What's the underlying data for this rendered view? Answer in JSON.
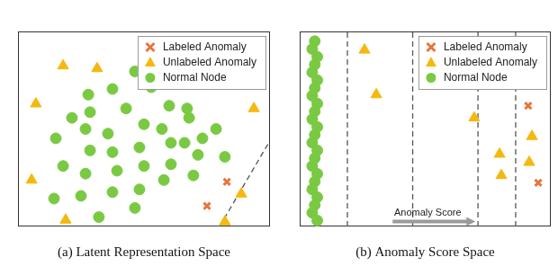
{
  "chart_data": [
    {
      "type": "scatter",
      "xlabel": "(a) Latent Representation Space",
      "xlim": [
        0,
        100
      ],
      "ylim": [
        0,
        100
      ],
      "xticks": [],
      "yticks": [],
      "tick_labels": false,
      "grid": false,
      "legend": "upper right",
      "series": [
        {
          "name": "Labeled Anomaly",
          "color": "#e8743b",
          "marker": "x",
          "x": [
            82.9,
            75.0
          ],
          "values": [
            22.9,
            10.5
          ]
        },
        {
          "name": "Unlabeled Anomaly",
          "color": "#f5b80f",
          "marker": "triangle",
          "x": [
            17.9,
            31.4,
            7.1,
            93.6,
            5.4,
            18.9,
            88.6,
            82.1
          ],
          "values": [
            82.4,
            81.0,
            62.9,
            60.5,
            23.8,
            3.3,
            16.7,
            2.4
          ]
        },
        {
          "name": "Normal Node",
          "color": "#7ac943",
          "marker": "circle",
          "x": [
            46.4,
            37.5,
            52.9,
            27.9,
            21.4,
            28.6,
            42.9,
            60.0,
            67.1,
            15.0,
            26.8,
            35.7,
            50.0,
            57.1,
            67.9,
            78.6,
            28.6,
            37.5,
            48.2,
            60.7,
            66.1,
            73.2,
            17.9,
            26.8,
            39.3,
            50.0,
            60.7,
            71.4,
            82.1,
            14.3,
            25.0,
            37.5,
            48.2,
            57.9,
            69.6,
            32.1,
            46.4
          ],
          "values": [
            79.5,
            70.5,
            71.4,
            67.6,
            55.7,
            58.6,
            60.5,
            61.9,
            60.5,
            45.2,
            50.0,
            47.6,
            52.4,
            50.0,
            55.7,
            50.0,
            39.0,
            38.1,
            40.5,
            42.9,
            42.9,
            45.2,
            31.0,
            27.1,
            28.6,
            31.0,
            31.9,
            36.7,
            35.7,
            14.3,
            15.7,
            17.6,
            19.0,
            23.8,
            26.2,
            4.8,
            9.5
          ]
        },
        {
          "type": "line",
          "color": "#555555",
          "line_style": "dashed",
          "x": [
            80,
            100
          ],
          "values": [
            0,
            44
          ]
        }
      ]
    },
    {
      "type": "scatter",
      "xlabel": "(b) Anomaly Score Space",
      "xlim": [
        0,
        100
      ],
      "ylim": [
        0,
        100
      ],
      "xticks": [],
      "yticks": [],
      "tick_labels": false,
      "grid": false,
      "legend": "upper right",
      "annotations": [
        {
          "text": "Anomaly Score",
          "x": 51,
          "y": 7,
          "arrow_x": [
            37,
            70
          ],
          "arrow_y": 2.5
        }
      ],
      "series": [
        {
          "name": "Labeled Anomaly",
          "color": "#e8743b",
          "marker": "x",
          "x": [
            91.0,
            95.0
          ],
          "values": [
            61.9,
            22.4
          ]
        },
        {
          "name": "Unlabeled Anomaly",
          "color": "#f5b80f",
          "marker": "triangle",
          "x": [
            25.8,
            30.5,
            69.5,
            92.5,
            79.6,
            91.4,
            80.3
          ],
          "values": [
            90.5,
            67.6,
            55.7,
            46.2,
            37.1,
            32.9,
            26.2
          ]
        },
        {
          "name": "Normal Node",
          "color": "#7ac943",
          "marker": "circle",
          "x": [
            6,
            5,
            7,
            6,
            5,
            7,
            6,
            5,
            7,
            6,
            5,
            7,
            6,
            5,
            7,
            6,
            5,
            7,
            6,
            5,
            7,
            6,
            5,
            7
          ],
          "values": [
            95,
            91,
            87,
            83,
            79,
            75,
            71,
            67,
            63,
            59,
            55,
            51,
            47,
            43,
            39,
            35,
            31,
            27,
            23,
            19,
            15,
            11,
            7,
            3
          ]
        },
        {
          "type": "line",
          "color": "#555555",
          "line_style": "dashed",
          "x": [
            19,
            19
          ],
          "values": [
            0,
            100
          ]
        },
        {
          "type": "line",
          "color": "#555555",
          "line_style": "dashed",
          "x": [
            45,
            45
          ],
          "values": [
            0,
            100
          ]
        },
        {
          "type": "line",
          "color": "#555555",
          "line_style": "dashed",
          "x": [
            71,
            71
          ],
          "values": [
            0,
            100
          ]
        },
        {
          "type": "line",
          "color": "#555555",
          "line_style": "dashed",
          "x": [
            86,
            86
          ],
          "values": [
            0,
            100
          ]
        }
      ]
    }
  ]
}
